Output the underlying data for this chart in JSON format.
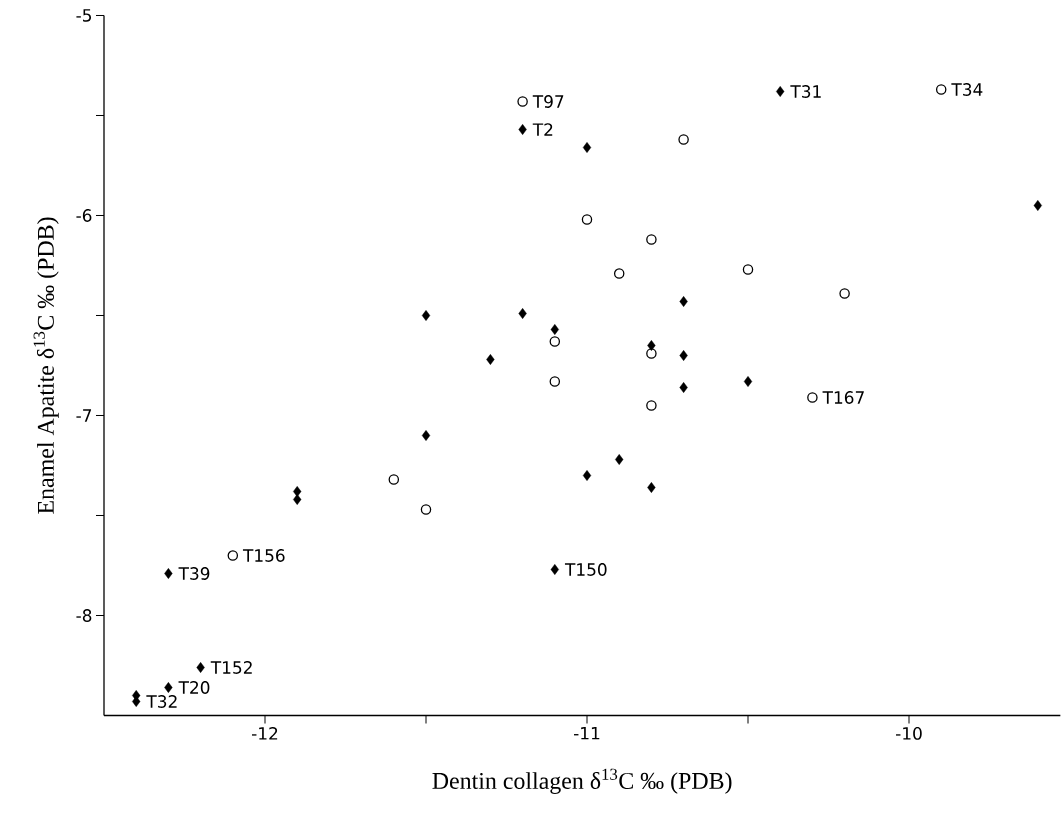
{
  "chart_data": {
    "type": "scatter",
    "xlabel": "Dentin collagen δ$^{13}$C ‰ (PDB)",
    "ylabel": "Enamel Apatite δ$^{13}$C ‰ (PDB)",
    "xlim": [
      -12.5,
      -9.53
    ],
    "ylim": [
      -8.5,
      -5
    ],
    "xticks": [
      -12,
      {
        "value": -11.5,
        "label": null
      },
      -11,
      {
        "value": -10.5,
        "label": null
      },
      -10
    ],
    "yticks": [
      -5,
      {
        "value": -5.5,
        "label": null
      },
      -6,
      {
        "value": -6.5,
        "label": null
      },
      -7,
      {
        "value": -7.5,
        "label": null
      },
      -8
    ],
    "grid": false,
    "series": [
      {
        "color": "#000000",
        "marker": "diamond",
        "x": [
          -10.4,
          -11.2,
          -11.0,
          -9.6,
          -10.7,
          -11.2,
          -11.5,
          -11.1,
          -11.3,
          -10.8,
          -10.7,
          -10.7,
          -10.5,
          -11.5,
          -11.9,
          -11.9,
          -11.0,
          -10.9,
          -10.8,
          -11.1,
          -12.3,
          -12.2,
          -12.3,
          -12.4,
          -12.4
        ],
        "values": [
          -5.38,
          -5.57,
          -5.66,
          -5.95,
          -6.43,
          -6.49,
          -6.5,
          -6.57,
          -6.72,
          -6.65,
          -6.7,
          -6.86,
          -6.83,
          -7.1,
          -7.38,
          -7.42,
          -7.3,
          -7.22,
          -7.36,
          -7.77,
          -7.79,
          -8.26,
          -8.36,
          -8.4,
          -8.43
        ]
      },
      {
        "color": "#000000",
        "marker": "circle",
        "x": [
          -11.2,
          -9.9,
          -10.7,
          -11.0,
          -10.8,
          -10.9,
          -10.5,
          -10.2,
          -11.1,
          -10.8,
          -11.1,
          -10.8,
          -10.3,
          -11.6,
          -11.5,
          -12.1
        ],
        "values": [
          -5.43,
          -5.37,
          -5.62,
          -6.02,
          -6.12,
          -6.29,
          -6.27,
          -6.39,
          -6.63,
          -6.69,
          -6.83,
          -6.95,
          -6.91,
          -7.32,
          -7.47,
          -7.7
        ]
      }
    ],
    "annotations": [
      {
        "text": "T31",
        "x": -10.4,
        "y": -5.38
      },
      {
        "text": "T2",
        "x": -11.2,
        "y": -5.57
      },
      {
        "text": "T150",
        "x": -11.1,
        "y": -7.77
      },
      {
        "text": "T39",
        "x": -12.3,
        "y": -7.79
      },
      {
        "text": "T152",
        "x": -12.2,
        "y": -8.26
      },
      {
        "text": "T20",
        "x": -12.3,
        "y": -8.36
      },
      {
        "text": "T32",
        "x": -12.4,
        "y": -8.43
      },
      {
        "text": "T97",
        "x": -11.2,
        "y": -5.43
      },
      {
        "text": "T34",
        "x": -9.9,
        "y": -5.37
      },
      {
        "text": "T167",
        "x": -10.3,
        "y": -6.91
      },
      {
        "text": "T156",
        "x": -12.1,
        "y": -7.7
      }
    ]
  }
}
